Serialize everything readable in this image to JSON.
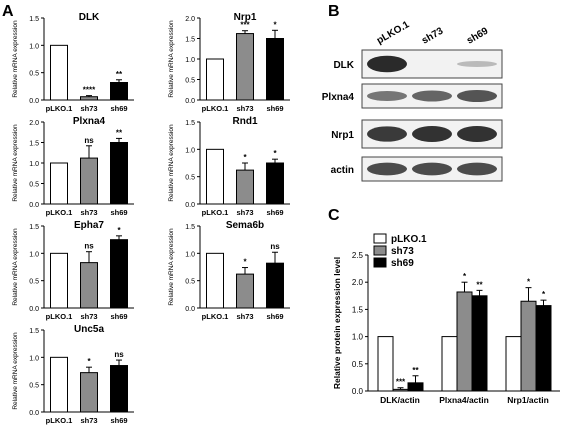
{
  "panels": {
    "a": "A",
    "b": "B",
    "c": "C"
  },
  "colors": {
    "pLKO.1": "#ffffff",
    "sh73": "#8c8c8c",
    "sh69": "#000000",
    "blot_bg": "#f2f2f2",
    "band": "#2a2a2a"
  },
  "chart_data": [
    {
      "type": "bar",
      "title": "DLK",
      "ylabel": "Relative mRNA expression",
      "categories": [
        "pLKO.1",
        "sh73",
        "sh69"
      ],
      "values": [
        1.0,
        0.06,
        0.32
      ],
      "errors": [
        0,
        0.02,
        0.05
      ],
      "significance": [
        "",
        "****",
        "**"
      ],
      "ylim": [
        0,
        1.5
      ],
      "yticks": [
        "0.0",
        "0.5",
        "1.0",
        "1.5"
      ]
    },
    {
      "type": "bar",
      "title": "Nrp1",
      "ylabel": "Relative mRNA expression",
      "categories": [
        "pLKO.1",
        "sh73",
        "sh69"
      ],
      "values": [
        1.0,
        1.62,
        1.5
      ],
      "errors": [
        0,
        0.07,
        0.2
      ],
      "significance": [
        "",
        "***",
        "*"
      ],
      "ylim": [
        0,
        2.0
      ],
      "yticks": [
        "0.0",
        "0.5",
        "1.0",
        "1.5",
        "2.0"
      ]
    },
    {
      "type": "bar",
      "title": "Plxna4",
      "ylabel": "Relative mRNA expression",
      "categories": [
        "pLKO.1",
        "sh73",
        "sh69"
      ],
      "values": [
        1.0,
        1.12,
        1.5
      ],
      "errors": [
        0,
        0.3,
        0.1
      ],
      "significance": [
        "",
        "ns",
        "**"
      ],
      "ylim": [
        0,
        2.0
      ],
      "yticks": [
        "0.0",
        "0.5",
        "1.0",
        "1.5",
        "2.0"
      ]
    },
    {
      "type": "bar",
      "title": "Rnd1",
      "ylabel": "Relative mRNA expression",
      "categories": [
        "pLKO.1",
        "sh73",
        "sh69"
      ],
      "values": [
        1.0,
        0.62,
        0.75
      ],
      "errors": [
        0,
        0.13,
        0.07
      ],
      "significance": [
        "",
        "*",
        "*"
      ],
      "ylim": [
        0,
        1.5
      ],
      "yticks": [
        "0.0",
        "0.5",
        "1.0",
        "1.5"
      ]
    },
    {
      "type": "bar",
      "title": "Epha7",
      "ylabel": "Relative mRNA expression",
      "categories": [
        "pLKO.1",
        "sh73",
        "sh69"
      ],
      "values": [
        1.0,
        0.83,
        1.25
      ],
      "errors": [
        0,
        0.2,
        0.07
      ],
      "significance": [
        "",
        "ns",
        "*"
      ],
      "ylim": [
        0,
        1.5
      ],
      "yticks": [
        "0.0",
        "0.5",
        "1.0",
        "1.5"
      ]
    },
    {
      "type": "bar",
      "title": "Sema6b",
      "ylabel": "Relative mRNA expression",
      "categories": [
        "pLKO.1",
        "sh73",
        "sh69"
      ],
      "values": [
        1.0,
        0.62,
        0.82
      ],
      "errors": [
        0,
        0.12,
        0.2
      ],
      "significance": [
        "",
        "*",
        "ns"
      ],
      "ylim": [
        0,
        1.5
      ],
      "yticks": [
        "0.0",
        "0.5",
        "1.0",
        "1.5"
      ]
    },
    {
      "type": "bar",
      "title": "Unc5a",
      "ylabel": "Relative mRNA expression",
      "categories": [
        "pLKO.1",
        "sh73",
        "sh69"
      ],
      "values": [
        1.0,
        0.72,
        0.85
      ],
      "errors": [
        0,
        0.1,
        0.1
      ],
      "significance": [
        "",
        "*",
        "ns"
      ],
      "ylim": [
        0,
        1.5
      ],
      "yticks": [
        "0.0",
        "0.5",
        "1.0",
        "1.5"
      ]
    },
    {
      "type": "bar",
      "ylabel": "Relative protein expression level",
      "categories": [
        "DLK/actin",
        "Plxna4/actin",
        "Nrp1/actin"
      ],
      "series": [
        {
          "name": "pLKO.1",
          "values": [
            1.0,
            1.0,
            1.0
          ],
          "errors": [
            0,
            0,
            0
          ],
          "significance": [
            "",
            "",
            ""
          ]
        },
        {
          "name": "sh73",
          "values": [
            0.03,
            1.82,
            1.65
          ],
          "errors": [
            0.03,
            0.18,
            0.25
          ],
          "significance": [
            "***",
            "*",
            "*"
          ]
        },
        {
          "name": "sh69",
          "values": [
            0.15,
            1.75,
            1.57
          ],
          "errors": [
            0.13,
            0.1,
            0.1
          ],
          "significance": [
            "**",
            "**",
            "*"
          ]
        }
      ],
      "ylim": [
        0,
        2.5
      ],
      "yticks": [
        "0.0",
        "0.5",
        "1.0",
        "1.5",
        "2.0",
        "2.5"
      ],
      "legend": "top-left"
    }
  ],
  "blot": {
    "lanes": [
      "pLKO.1",
      "sh73",
      "sh69"
    ],
    "rows": [
      {
        "label": "DLK",
        "intensity": [
          1.0,
          0.0,
          0.15
        ]
      },
      {
        "label": "Plxna4",
        "intensity": [
          0.55,
          0.65,
          0.75
        ]
      },
      {
        "label": "Nrp1",
        "intensity": [
          0.9,
          0.95,
          0.95
        ]
      },
      {
        "label": "actin",
        "intensity": [
          0.8,
          0.8,
          0.8
        ]
      }
    ]
  }
}
